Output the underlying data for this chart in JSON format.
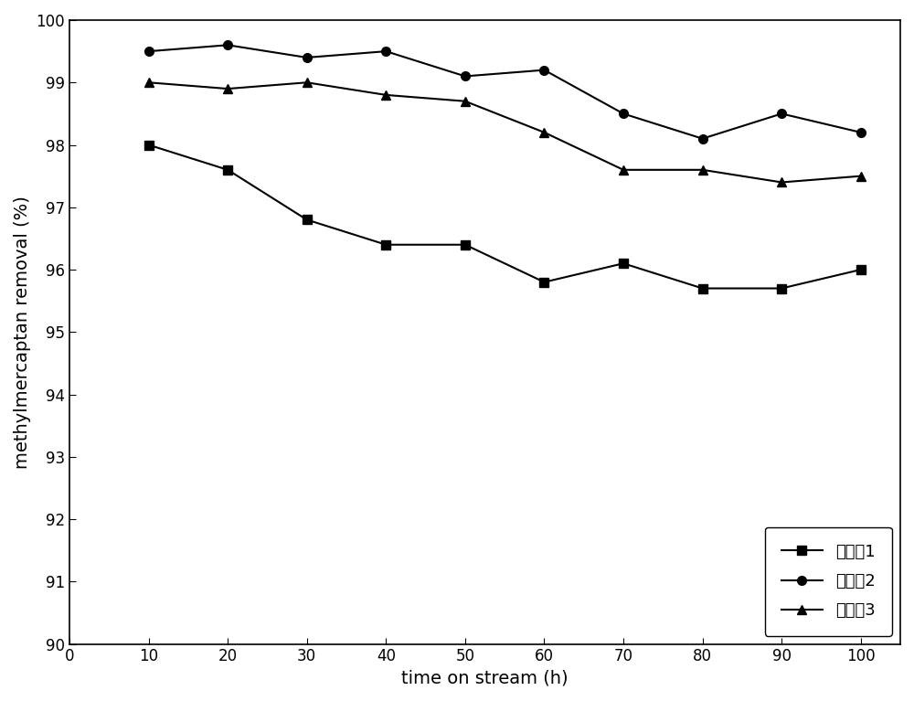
{
  "x": [
    10,
    20,
    30,
    40,
    50,
    60,
    70,
    80,
    90,
    100
  ],
  "series1": {
    "label": "实施例1",
    "y": [
      98.0,
      97.6,
      96.8,
      96.4,
      96.4,
      95.8,
      96.1,
      95.7,
      95.7,
      96.0
    ],
    "marker": "s",
    "color": "#000000"
  },
  "series2": {
    "label": "实施例2",
    "y": [
      99.5,
      99.6,
      99.4,
      99.5,
      99.1,
      99.2,
      98.5,
      98.1,
      98.5,
      98.2
    ],
    "marker": "o",
    "color": "#000000"
  },
  "series3": {
    "label": "实施例3",
    "y": [
      99.0,
      98.9,
      99.0,
      98.8,
      98.7,
      98.2,
      97.6,
      97.6,
      97.4,
      97.5
    ],
    "marker": "^",
    "color": "#000000"
  },
  "xlabel": "time on stream (h)",
  "ylabel": "methylmercaptan removal (%)",
  "xlim": [
    0,
    105
  ],
  "ylim": [
    90,
    100
  ],
  "xticks": [
    0,
    10,
    20,
    30,
    40,
    50,
    60,
    70,
    80,
    90,
    100
  ],
  "yticks": [
    90,
    91,
    92,
    93,
    94,
    95,
    96,
    97,
    98,
    99,
    100
  ],
  "legend_loc": "lower right",
  "linewidth": 1.5,
  "markersize": 7,
  "figsize": [
    10.0,
    7.67
  ],
  "dpi": 100
}
